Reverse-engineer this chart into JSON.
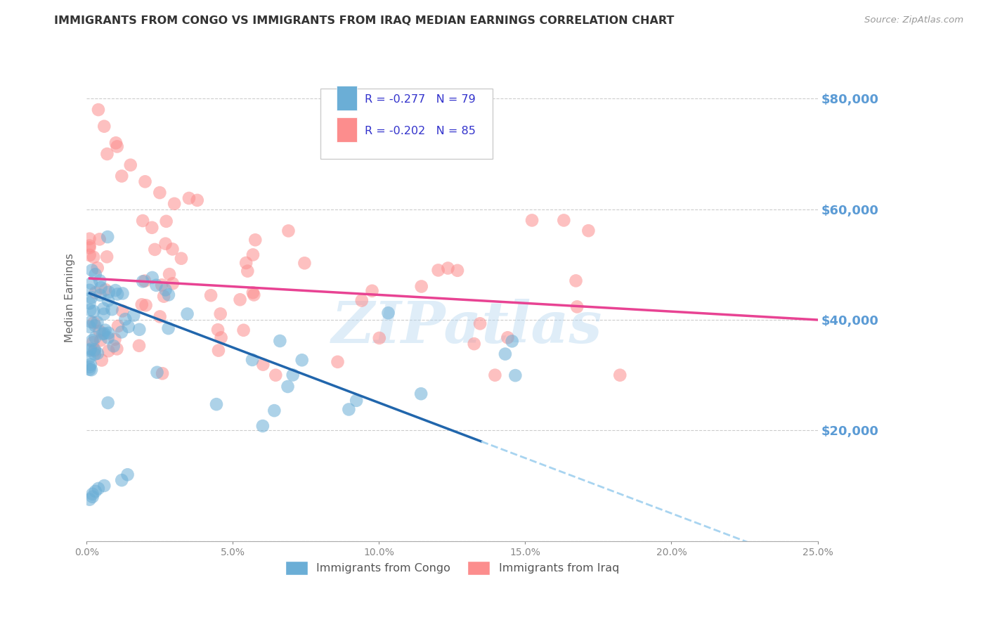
{
  "title": "IMMIGRANTS FROM CONGO VS IMMIGRANTS FROM IRAQ MEDIAN EARNINGS CORRELATION CHART",
  "source": "Source: ZipAtlas.com",
  "ylabel": "Median Earnings",
  "xlim": [
    0.0,
    0.25
  ],
  "ylim": [
    0,
    88000
  ],
  "xtick_labels": [
    "0.0%",
    "5.0%",
    "10.0%",
    "15.0%",
    "20.0%",
    "25.0%"
  ],
  "xtick_vals": [
    0.0,
    0.05,
    0.1,
    0.15,
    0.2,
    0.25
  ],
  "ytick_vals": [
    0,
    20000,
    40000,
    60000,
    80000
  ],
  "ytick_labels": [
    "",
    "$20,000",
    "$40,000",
    "$60,000",
    "$80,000"
  ],
  "congo_color": "#6baed6",
  "iraq_color": "#fc8d8d",
  "congo_line_color": "#2166ac",
  "iraq_line_color": "#e84393",
  "congo_dash_color": "#a8d4f0",
  "congo_R": "-0.277",
  "congo_N": "79",
  "iraq_R": "-0.202",
  "iraq_N": "85",
  "legend_label_congo": "Immigrants from Congo",
  "legend_label_iraq": "Immigrants from Iraq",
  "watermark": "ZIPatlas",
  "background_color": "#ffffff",
  "grid_color": "#cccccc",
  "right_axis_color": "#5b9bd5",
  "congo_line_x0": 0.001,
  "congo_line_x_solid_end": 0.135,
  "congo_line_x_dash_end": 0.25,
  "congo_line_y0": 45000,
  "congo_line_slope": -200000,
  "iraq_line_x0": 0.001,
  "iraq_line_x1": 0.25,
  "iraq_line_y0": 47500,
  "iraq_line_y1": 40000
}
